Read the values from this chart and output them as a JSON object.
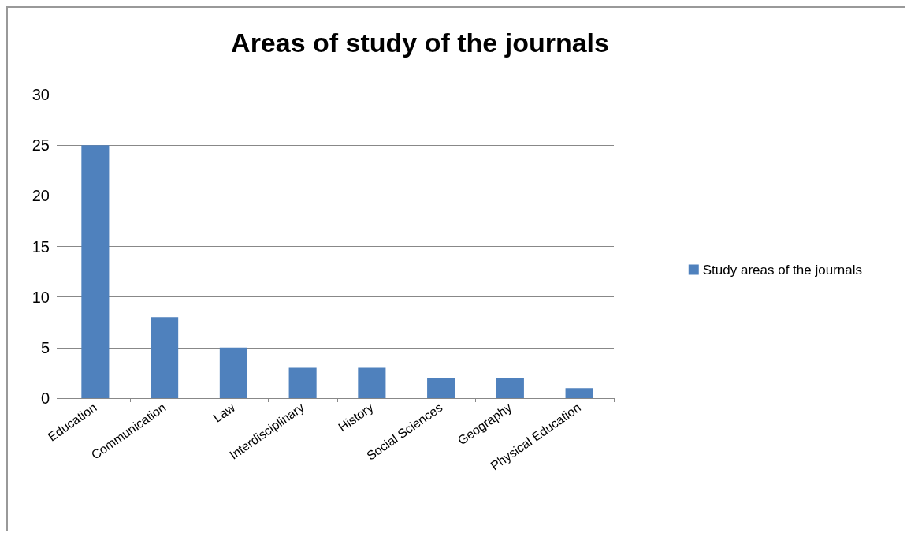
{
  "chart_data": {
    "type": "bar",
    "title": "Areas of study of the journals",
    "categories": [
      "Education",
      "Communication",
      "Law",
      "Interdisciplinary",
      "History",
      "Social Sciences",
      "Geography",
      "Physical Education"
    ],
    "series": [
      {
        "name": "Study areas of the journals",
        "color": "#4f81bd",
        "values": [
          25,
          8,
          5,
          3,
          3,
          2,
          2,
          1
        ]
      }
    ],
    "ylim": [
      0,
      30
    ],
    "yticks": [
      0,
      5,
      10,
      15,
      20,
      25,
      30
    ],
    "grid": "y",
    "legend": "right"
  }
}
